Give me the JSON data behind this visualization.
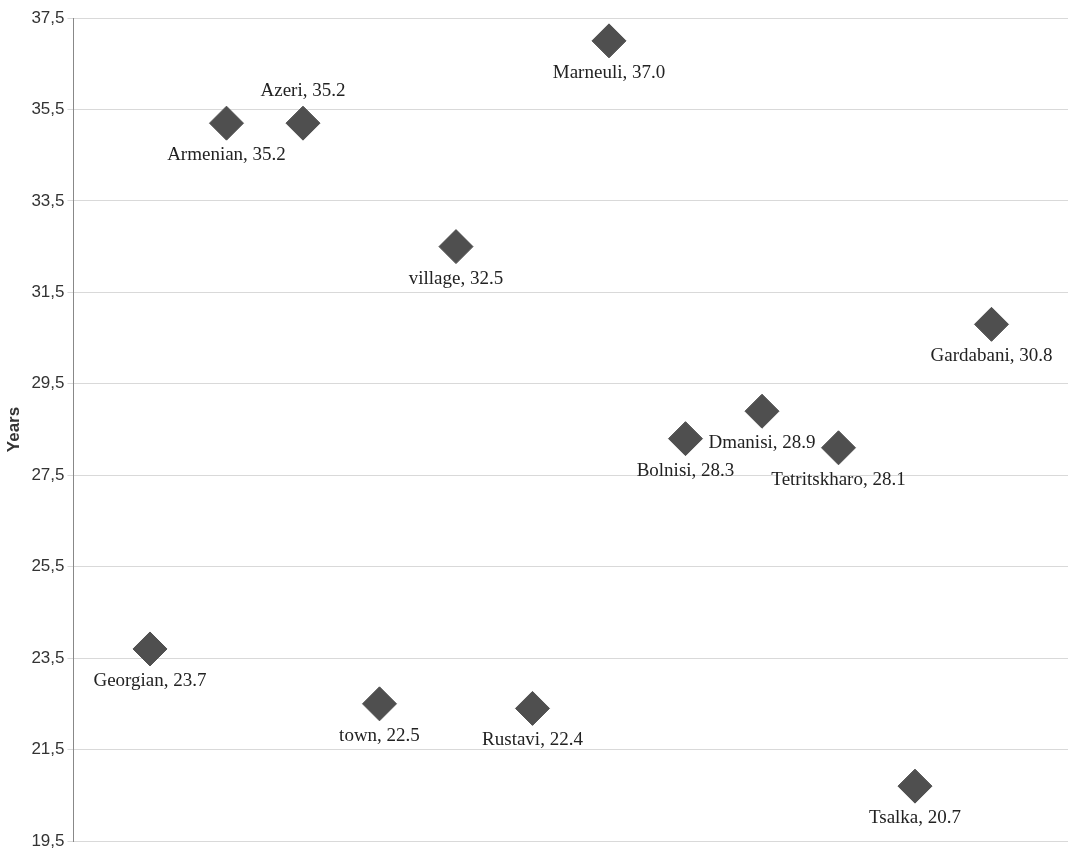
{
  "chart_data": {
    "type": "scatter",
    "ylabel": "Years",
    "categories": [
      null,
      null,
      null,
      null,
      null,
      null,
      null,
      null,
      null,
      null,
      null,
      null,
      null,
      null
    ],
    "values": [
      null,
      23.7,
      35.2,
      35.2,
      22.5,
      32.5,
      22.4,
      37.0,
      28.3,
      28.9,
      28.1,
      20.7,
      30.8,
      null
    ],
    "value_labels": [
      null,
      "Georgian, 23.7",
      "Armenian, 35.2",
      "Azeri, 35.2",
      "town, 22.5",
      "village, 32.5",
      "Rustavi, 22.4",
      "Marneuli, 37.0",
      "Bolnisi, 28.3",
      "Dmanisi, 28.9",
      "Tetritskharo, 28.1",
      "Tsalka, 20.7",
      "Gardabani, 30.8",
      null
    ],
    "color": "#4f4f4f",
    "marker": "diamond",
    "ylim": [
      19.5,
      37.5
    ],
    "yticks": [
      {
        "value": 19.5,
        "label": "19,5"
      },
      {
        "value": 21.5,
        "label": "21,5"
      },
      {
        "value": 23.5,
        "label": "23,5"
      },
      {
        "value": 25.5,
        "label": "25,5"
      },
      {
        "value": 27.5,
        "label": "27,5"
      },
      {
        "value": 29.5,
        "label": "29,5"
      },
      {
        "value": 31.5,
        "label": "31,5"
      },
      {
        "value": 33.5,
        "label": "33,5"
      },
      {
        "value": 35.5,
        "label": "35,5"
      },
      {
        "value": 37.5,
        "label": "37,5"
      }
    ],
    "grid": "y",
    "legend": false,
    "tick_labels": "y"
  }
}
